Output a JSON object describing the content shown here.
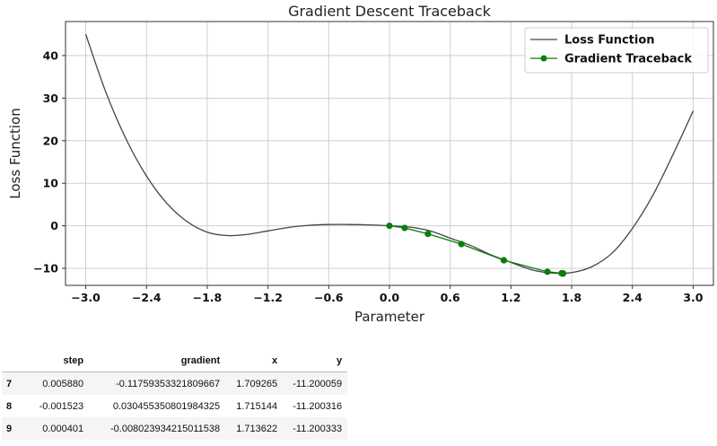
{
  "chart_data": {
    "type": "line",
    "title": "Gradient Descent Traceback",
    "xlabel": "Parameter",
    "ylabel": "Loss Function",
    "xlim": [
      -3.2,
      3.2
    ],
    "ylim": [
      -14,
      48
    ],
    "xticks": [
      "−3.0",
      "−2.4",
      "−1.8",
      "−1.2",
      "−0.6",
      "0.0",
      "0.6",
      "1.2",
      "1.8",
      "2.4",
      "3.0"
    ],
    "xtick_values": [
      -3.0,
      -2.4,
      -1.8,
      -1.2,
      -0.6,
      0.0,
      0.6,
      1.2,
      1.8,
      2.4,
      3.0
    ],
    "yticks": [
      "−10",
      "0",
      "10",
      "20",
      "30",
      "40"
    ],
    "ytick_values": [
      -10,
      0,
      10,
      20,
      30,
      40
    ],
    "grid": true,
    "legend_position": "top-right",
    "series": [
      {
        "name": "Loss Function",
        "color": "#444444",
        "style": "line",
        "x": [
          -3.0,
          -2.8,
          -2.6,
          -2.4,
          -2.2,
          -2.0,
          -1.8,
          -1.6,
          -1.4,
          -1.2,
          -1.0,
          -0.8,
          -0.6,
          -0.4,
          -0.2,
          0.0,
          0.2,
          0.4,
          0.6,
          0.8,
          1.0,
          1.2,
          1.4,
          1.6,
          1.8,
          2.0,
          2.2,
          2.4,
          2.6,
          2.8,
          3.0
        ],
        "y": [
          45.0,
          31.3,
          20.3,
          11.7,
          5.3,
          1.0,
          -1.5,
          -2.3,
          -2.0,
          -1.2,
          -0.4,
          0.1,
          0.3,
          0.3,
          0.2,
          0.0,
          -0.3,
          -1.2,
          -2.9,
          -4.6,
          -6.8,
          -8.6,
          -10.3,
          -11.1,
          -11.0,
          -9.6,
          -6.4,
          -0.6,
          7.1,
          16.7,
          27.0
        ]
      },
      {
        "name": "Gradient Traceback",
        "color": "#0a7d0a",
        "style": "line-markers",
        "x": [
          0.0,
          0.15,
          0.38,
          0.71,
          1.13,
          1.56,
          1.7,
          1.709,
          1.715,
          1.714
        ],
        "y": [
          0.0,
          -0.5,
          -1.9,
          -4.3,
          -8.1,
          -10.8,
          -11.15,
          -11.2,
          -11.2,
          -11.2
        ]
      }
    ]
  },
  "table": {
    "columns": [
      "step",
      "gradient",
      "x",
      "y"
    ],
    "rows": [
      {
        "index": "7",
        "step": "0.005880",
        "gradient": "-0.11759353321809667",
        "x": "1.709265",
        "y": "-11.200059"
      },
      {
        "index": "8",
        "step": "-0.001523",
        "gradient": "0.030455350801984325",
        "x": "1.715144",
        "y": "-11.200316"
      },
      {
        "index": "9",
        "step": "0.000401",
        "gradient": "-0.008023934215011538",
        "x": "1.713622",
        "y": "-11.200333"
      }
    ]
  }
}
